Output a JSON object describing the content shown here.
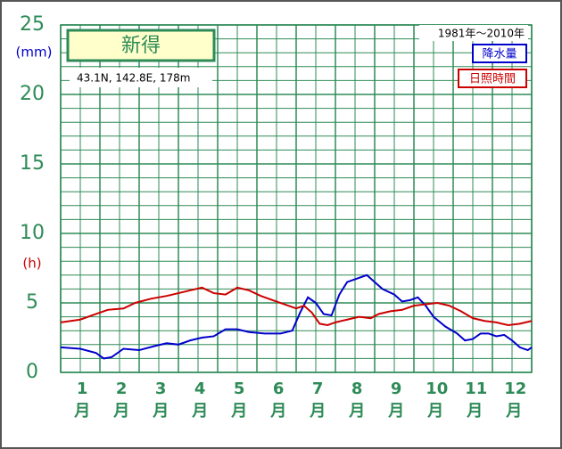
{
  "chart_data": {
    "type": "line",
    "title": "新得",
    "subtitle": "43.1N,  142.8E,  178m",
    "period": "1981年～2010年",
    "y_label": "(mm)",
    "y2_label": "(h)",
    "categories": [
      "1月",
      "2月",
      "3月",
      "4月",
      "5月",
      "6月",
      "7月",
      "8月",
      "9月",
      "10月",
      "11月",
      "12月"
    ],
    "xlim": [
      0,
      12
    ],
    "ylim": [
      0,
      25
    ],
    "yticks": [
      0,
      5,
      10,
      15,
      20,
      25
    ],
    "grid": true,
    "legend": "upper right",
    "series": [
      {
        "name": "降水量",
        "color": "#0000cc",
        "x": [
          0,
          0.5,
          0.9,
          1.1,
          1.3,
          1.6,
          2.0,
          2.4,
          2.7,
          3.0,
          3.3,
          3.6,
          3.9,
          4.2,
          4.5,
          4.8,
          5.2,
          5.6,
          5.9,
          6.1,
          6.3,
          6.5,
          6.7,
          6.9,
          7.1,
          7.3,
          7.6,
          7.8,
          8.0,
          8.2,
          8.5,
          8.7,
          8.9,
          9.1,
          9.3,
          9.5,
          9.8,
          10.1,
          10.3,
          10.5,
          10.7,
          10.9,
          11.1,
          11.3,
          11.5,
          11.7,
          11.9,
          12.0
        ],
        "values": [
          1.8,
          1.7,
          1.4,
          1.0,
          1.1,
          1.7,
          1.6,
          1.9,
          2.1,
          2.0,
          2.3,
          2.5,
          2.6,
          3.1,
          3.1,
          2.9,
          2.8,
          2.8,
          3.0,
          4.3,
          5.4,
          5.0,
          4.2,
          4.1,
          5.6,
          6.5,
          6.8,
          7.0,
          6.5,
          6.0,
          5.6,
          5.1,
          5.2,
          5.4,
          4.8,
          4.0,
          3.3,
          2.8,
          2.3,
          2.4,
          2.8,
          2.8,
          2.6,
          2.7,
          2.3,
          1.8,
          1.6,
          1.8
        ]
      },
      {
        "name": "日照時間",
        "color": "#cc0000",
        "x": [
          0,
          0.5,
          0.9,
          1.2,
          1.6,
          1.9,
          2.3,
          2.7,
          3.0,
          3.3,
          3.6,
          3.9,
          4.2,
          4.5,
          4.8,
          5.1,
          5.4,
          5.7,
          6.0,
          6.2,
          6.4,
          6.6,
          6.8,
          7.0,
          7.3,
          7.6,
          7.9,
          8.1,
          8.4,
          8.7,
          9.0,
          9.3,
          9.6,
          9.9,
          10.2,
          10.5,
          10.8,
          11.1,
          11.4,
          11.7,
          12.0
        ],
        "values": [
          3.6,
          3.8,
          4.2,
          4.5,
          4.6,
          5.0,
          5.3,
          5.5,
          5.7,
          5.9,
          6.1,
          5.7,
          5.6,
          6.1,
          5.9,
          5.5,
          5.2,
          4.9,
          4.6,
          4.8,
          4.3,
          3.5,
          3.4,
          3.6,
          3.8,
          4.0,
          3.9,
          4.2,
          4.4,
          4.5,
          4.8,
          4.9,
          5.0,
          4.8,
          4.4,
          3.9,
          3.7,
          3.6,
          3.4,
          3.5,
          3.7
        ]
      }
    ]
  }
}
